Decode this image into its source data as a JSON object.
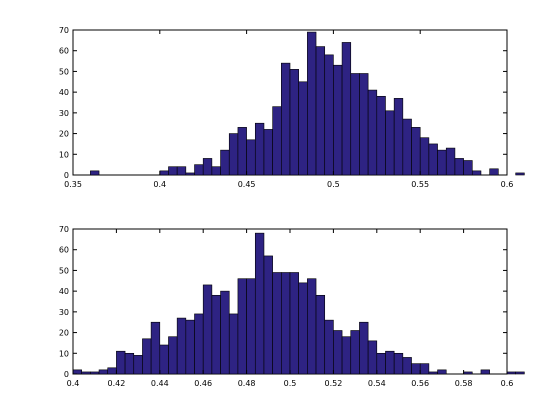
{
  "figure": {
    "background": "#ffffff"
  },
  "chart_data": [
    {
      "type": "bar",
      "subtype": "histogram",
      "bar_color": "#2e2383",
      "edge_color": "#000000",
      "xlim": [
        0.35,
        0.6
      ],
      "ylim": [
        0,
        70
      ],
      "xticks": [
        0.35,
        0.4,
        0.45,
        0.5,
        0.55,
        0.6
      ],
      "xtick_labels": [
        "0.35",
        "0.4",
        "0.45",
        "0.5",
        "0.55",
        "0.6"
      ],
      "yticks": [
        0,
        10,
        20,
        30,
        40,
        50,
        60,
        70
      ],
      "ytick_labels": [
        "0",
        "10",
        "20",
        "30",
        "40",
        "50",
        "60",
        "70"
      ],
      "bin_width": 0.005,
      "bins_start": 0.36,
      "values": [
        2,
        0,
        0,
        0,
        0,
        0,
        0,
        0,
        2,
        4,
        4,
        1,
        5,
        8,
        4,
        12,
        20,
        23,
        17,
        25,
        22,
        33,
        54,
        51,
        45,
        69,
        62,
        58,
        53,
        64,
        49,
        49,
        41,
        38,
        31,
        37,
        27,
        23,
        18,
        15,
        12,
        13,
        8,
        7,
        2,
        0,
        3,
        0,
        0,
        1
      ],
      "title": "",
      "xlabel": "",
      "ylabel": ""
    },
    {
      "type": "bar",
      "subtype": "histogram",
      "bar_color": "#2e2383",
      "edge_color": "#000000",
      "xlim": [
        0.4,
        0.6
      ],
      "ylim": [
        0,
        70
      ],
      "xticks": [
        0.4,
        0.42,
        0.44,
        0.46,
        0.48,
        0.5,
        0.52,
        0.54,
        0.56,
        0.58,
        0.6
      ],
      "xtick_labels": [
        "0.4",
        "0.42",
        "0.44",
        "0.46",
        "0.48",
        "0.5",
        "0.52",
        "0.54",
        "0.56",
        "0.58",
        "0.6"
      ],
      "yticks": [
        0,
        10,
        20,
        30,
        40,
        50,
        60,
        70
      ],
      "ytick_labels": [
        "0",
        "10",
        "20",
        "30",
        "40",
        "50",
        "60",
        "70"
      ],
      "bin_width": 0.004,
      "bins_start": 0.4,
      "values": [
        2,
        1,
        1,
        2,
        3,
        11,
        10,
        9,
        17,
        25,
        14,
        18,
        27,
        26,
        29,
        43,
        38,
        40,
        29,
        46,
        46,
        68,
        57,
        49,
        49,
        49,
        44,
        46,
        38,
        26,
        21,
        18,
        21,
        25,
        16,
        10,
        11,
        10,
        8,
        5,
        5,
        1,
        2,
        0,
        0,
        1,
        0,
        2,
        0,
        0,
        1,
        1,
        0
      ]
    }
  ]
}
